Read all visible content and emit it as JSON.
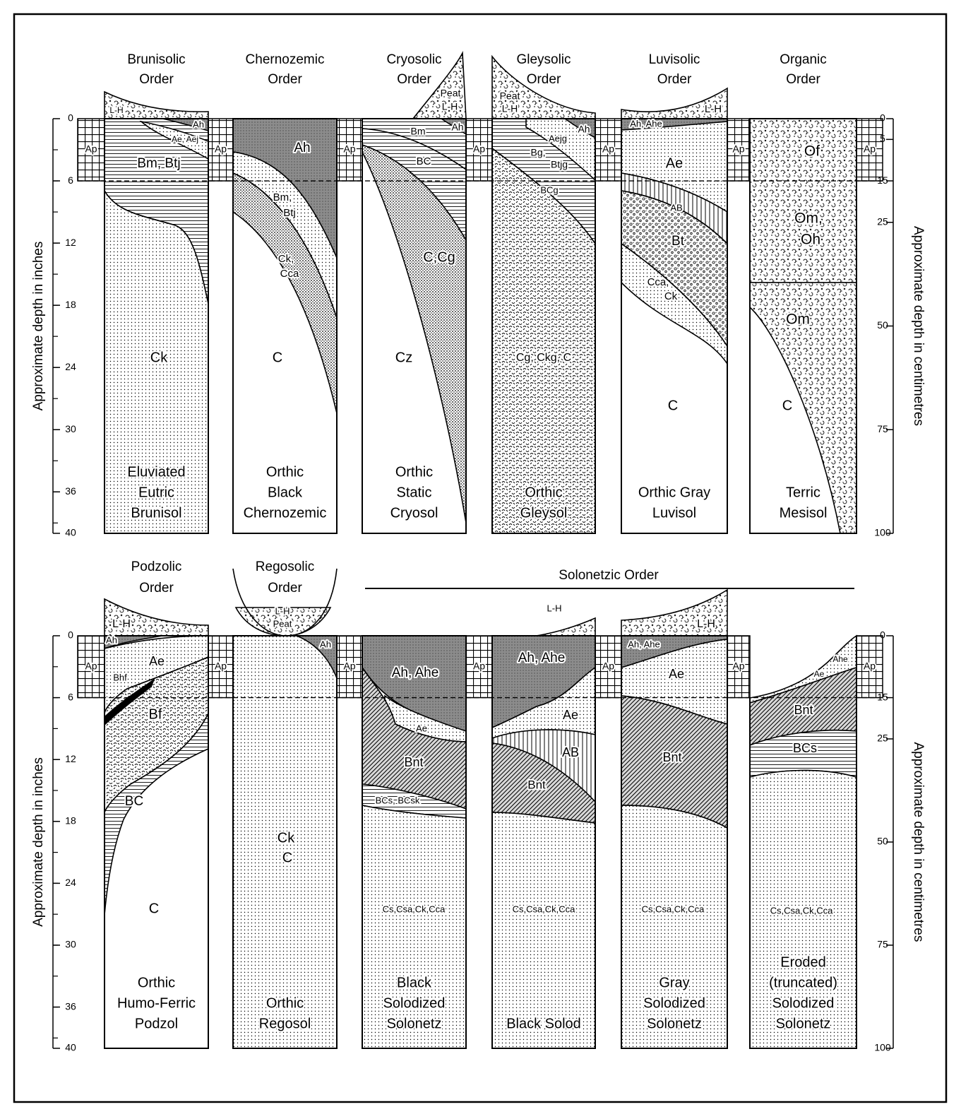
{
  "ap_label": "Ap",
  "rows": [
    {
      "left_axis": {
        "label": "Approximate depth in inches",
        "lim": [
          0,
          40
        ],
        "ticks": [
          0,
          6,
          12,
          18,
          24,
          30,
          36,
          40
        ]
      },
      "right_axis": {
        "label": "Approximate depth in centimetres",
        "lim": [
          0,
          100
        ],
        "ticks": [
          0,
          5,
          15,
          25,
          50,
          75,
          100
        ]
      },
      "profiles": [
        {
          "order": [
            "Brunisolic",
            "Order"
          ],
          "horizons": [
            "L-H",
            "Ah",
            "Ae, Aej",
            "Bm, Btj",
            "Ck"
          ],
          "name": [
            "Eluviated",
            "Eutric",
            "Brunisol"
          ]
        },
        {
          "order": [
            "Chernozemic",
            "Order"
          ],
          "horizons": [
            "Ah",
            "Bm,",
            "Btj",
            "Ck,",
            "Cca",
            "C"
          ],
          "name": [
            "Orthic",
            "Black",
            "Chernozemic"
          ]
        },
        {
          "order": [
            "Cryosolic",
            "Order"
          ],
          "horizons": [
            "Peat",
            "L-H",
            "Bm",
            "Ah",
            "BC",
            "C,Cg",
            "Cz"
          ],
          "name": [
            "Orthic",
            "Static",
            "Cryosol"
          ]
        },
        {
          "order": [
            "Gleysolic",
            "Order"
          ],
          "horizons": [
            "Peat",
            "L-H",
            "Ah",
            "Aejg",
            "Bg,",
            "Btjg",
            "BCg",
            "Cg, Ckg, C"
          ],
          "name": [
            "Orthic",
            "Gleysol"
          ]
        },
        {
          "order": [
            "Luvisolic",
            "Order"
          ],
          "horizons": [
            "L-H",
            "Ah, Ahe",
            "Ae",
            "AB",
            "Bt",
            "Cca,",
            "Ck",
            "C"
          ],
          "name": [
            "Orthic Gray",
            "Luvisol"
          ]
        },
        {
          "order": [
            "Organic",
            "Order"
          ],
          "horizons": [
            "Of",
            "Om,",
            "Oh",
            "Om",
            "C"
          ],
          "name": [
            "Terric",
            "Mesisol"
          ]
        }
      ]
    },
    {
      "group_label": "Solonetzic Order",
      "left_axis": {
        "label": "Approximate depth in inches",
        "lim": [
          0,
          40
        ],
        "ticks": [
          0,
          6,
          12,
          18,
          24,
          30,
          36,
          40
        ]
      },
      "right_axis": {
        "label": "Approximate depth in centimetres",
        "lim": [
          0,
          100
        ],
        "ticks": [
          0,
          15,
          25,
          50,
          75,
          100
        ]
      },
      "profiles": [
        {
          "order": [
            "Podzolic",
            "Order"
          ],
          "horizons": [
            "L-H",
            "Ah",
            "Ae",
            "Bhf",
            "Bf",
            "BC",
            "C"
          ],
          "name": [
            "Orthic",
            "Humo-Ferric",
            "Podzol"
          ]
        },
        {
          "order": [
            "Regosolic",
            "Order"
          ],
          "horizons": [
            "L-H",
            "Peat",
            "Ah",
            "Ck",
            "C"
          ],
          "name": [
            "Orthic",
            "Regosol"
          ]
        },
        {
          "horizons": [
            "Ah, Ahe",
            "Ae",
            "Bnt",
            "BCs, BCsk",
            "Cs,Csa,Ck,Cca"
          ],
          "name": [
            "Black",
            "Solodized",
            "Solonetz"
          ]
        },
        {
          "horizons": [
            "L-H",
            "Ah, Ahe",
            "Ae",
            "AB",
            "Bnt",
            "Cs,Csa,Ck,Cca"
          ],
          "name": [
            "Black Solod"
          ]
        },
        {
          "horizons": [
            "L-H",
            "Ah, Ahe",
            "Ae",
            "Bnt",
            "Cs,Csa,Ck,Cca"
          ],
          "name": [
            "Gray",
            "Solodized",
            "Solonetz"
          ]
        },
        {
          "horizons": [
            "Ahe",
            "Ae",
            "Bnt",
            "BCs",
            "Cs,Csa,Ck,Cca"
          ],
          "name": [
            "Eroded",
            "(truncated)",
            "Solodized",
            "Solonetz"
          ]
        }
      ]
    }
  ]
}
